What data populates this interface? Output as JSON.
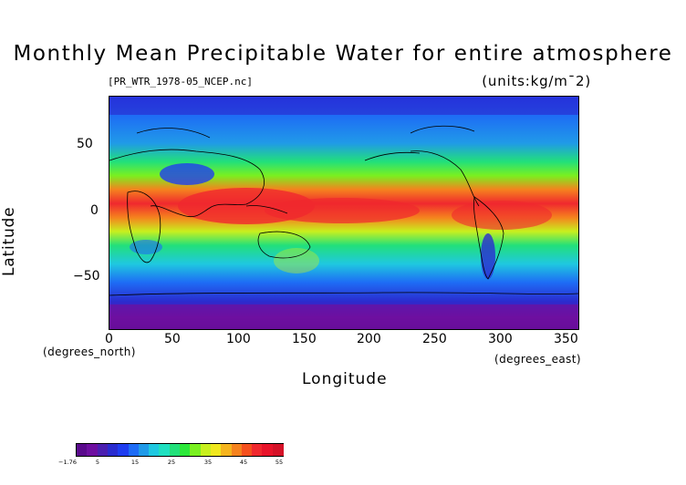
{
  "title": "Monthly Mean Precipitable Water for entire atmosphere",
  "file_label": "[PR_WTR_1978-05_NCEP.nc]",
  "units_label": "(units:kg/m¯2)",
  "y_axis": {
    "label": "Latitude",
    "ticks": [
      "50",
      "0",
      "−50"
    ],
    "tick_values": [
      50,
      0,
      -50
    ],
    "range": [
      -90,
      90
    ]
  },
  "x_axis": {
    "label": "Longitude",
    "unit_left": "(degrees_north)",
    "unit_right": "(degrees_east)",
    "ticks": [
      "0",
      "50",
      "100",
      "150",
      "200",
      "250",
      "300",
      "350"
    ],
    "tick_values": [
      0,
      50,
      100,
      150,
      200,
      250,
      300,
      350
    ],
    "range": [
      0,
      360
    ]
  },
  "colorbar": {
    "labels": [
      "−1.76",
      "5",
      "15",
      "25",
      "35",
      "45",
      "55"
    ],
    "colors": [
      "#5a0a8c",
      "#6e0fa0",
      "#4b1fb0",
      "#2a2ccf",
      "#1f3df0",
      "#1e6cf5",
      "#209ae8",
      "#1fc8e0",
      "#1fe0c0",
      "#22e07a",
      "#2ce83a",
      "#7af020",
      "#c8f01e",
      "#f0e81e",
      "#f5b41e",
      "#f5821e",
      "#f5501e",
      "#f0282e",
      "#e8142a",
      "#d41228"
    ]
  },
  "chart_data": {
    "type": "heatmap",
    "title": "Monthly Mean Precipitable Water for entire atmosphere",
    "xlabel": "Longitude",
    "ylabel": "Latitude",
    "xlim": [
      0,
      360
    ],
    "ylim": [
      -90,
      90
    ],
    "value_range": [
      -1.76,
      55
    ],
    "zonal_bands": [
      {
        "lat": 90,
        "value": 2
      },
      {
        "lat": 75,
        "value": 7
      },
      {
        "lat": 60,
        "value": 11
      },
      {
        "lat": 45,
        "value": 18
      },
      {
        "lat": 30,
        "value": 27
      },
      {
        "lat": 15,
        "value": 40
      },
      {
        "lat": 5,
        "value": 50
      },
      {
        "lat": 0,
        "value": 46
      },
      {
        "lat": -10,
        "value": 38
      },
      {
        "lat": -20,
        "value": 30
      },
      {
        "lat": -35,
        "value": 22
      },
      {
        "lat": -50,
        "value": 15
      },
      {
        "lat": -65,
        "value": 8
      },
      {
        "lat": -80,
        "value": 2
      },
      {
        "lat": -90,
        "value": 1
      }
    ]
  }
}
